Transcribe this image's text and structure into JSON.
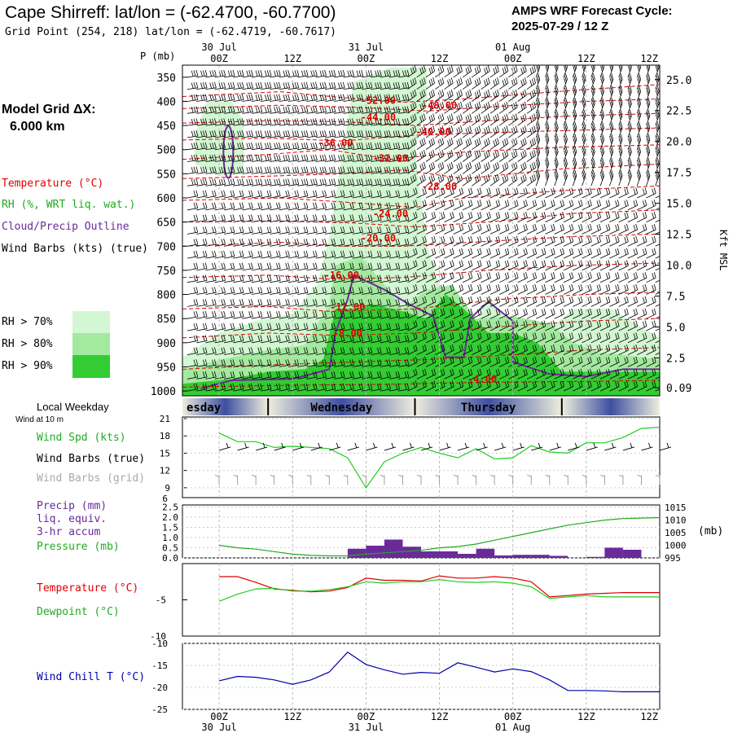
{
  "header": {
    "title": "Cape Shirreff:  lat/lon = (-62.4700, -60.7700)",
    "grid_point": "Grid Point (254, 218) lat/lon = (-62.4719, -60.7617)",
    "cycle_line1": "AMPS WRF Forecast Cycle:",
    "cycle_line2": "2025-07-29 / 12  Z"
  },
  "left_panel": {
    "model_grid_label": "Model Grid ΔX:",
    "model_grid_value": "6.000 km",
    "legend_temperature": "Temperature (°C)",
    "legend_rh": "RH (%, WRT liq. wat.)",
    "legend_cloud": "Cloud/Precip Outline",
    "legend_wind": "Wind Barbs (kts) (true)",
    "rh70": "RH > 70%",
    "rh80": "RH > 80%",
    "rh90": "RH > 90%",
    "local_weekday": "Local Weekday",
    "wind_at_10m": "Wind at 10 m"
  },
  "colors": {
    "rh70": "#d2f7d2",
    "rh80": "#a3ea9f",
    "rh90": "#33cc33",
    "temperature": "#dd0000",
    "cloud_outline": "#6a2a9a",
    "wind_speed": "#22cc22",
    "precip": "#6a2a9a",
    "pressure": "#22aa22",
    "dewpoint": "#22cc22",
    "wind_chill": "#0000aa",
    "weekday_dark": "#3e4fa0",
    "weekday_light": "#eeeedd"
  },
  "time_axis": {
    "tick_labels": [
      "00Z",
      "12Z",
      "00Z",
      "12Z",
      "00Z",
      "12Z"
    ],
    "date_labels": [
      "30 Jul",
      "31 Jul",
      "01 Aug"
    ],
    "forecast_hours": [
      0,
      3,
      6,
      9,
      12,
      15,
      18,
      21,
      24,
      27,
      30,
      33,
      36,
      39,
      42,
      45,
      48,
      51,
      54,
      57,
      60,
      63,
      66,
      69,
      72
    ]
  },
  "weekday_bar": {
    "days": [
      "esday",
      "Wednesday",
      "Thursday"
    ]
  },
  "chart_data": [
    {
      "type": "contour",
      "name": "vertical cross-section",
      "ylabel": "P (mb)",
      "y2label": "Kft MSL",
      "p_ticks": [
        "350",
        "400",
        "450",
        "500",
        "550",
        "600",
        "650",
        "700",
        "750",
        "800",
        "850",
        "900",
        "950",
        "1000"
      ],
      "p_tick_values": [
        350,
        400,
        450,
        500,
        550,
        600,
        650,
        700,
        750,
        800,
        850,
        900,
        950,
        1000
      ],
      "kft_ticks": [
        "25.0",
        "22.5",
        "20.0",
        "17.5",
        "15.0",
        "12.5",
        "10.0",
        "7.5",
        "5.0",
        "2.5",
        "0.09"
      ],
      "kft_tick_values": [
        25.0,
        22.5,
        20.0,
        17.5,
        15.0,
        12.5,
        10.0,
        7.5,
        5.0,
        2.5,
        0.09
      ],
      "temperature_contour_labels": [
        {
          "text": "-52.00",
          "hour": 26,
          "p": 405
        },
        {
          "text": "-48.00",
          "hour": 36,
          "p": 415
        },
        {
          "text": "-44.00",
          "hour": 26,
          "p": 440
        },
        {
          "text": "-40.00",
          "hour": 35,
          "p": 470
        },
        {
          "text": "-36.00",
          "hour": 19,
          "p": 493
        },
        {
          "text": "-32.00",
          "hour": 28,
          "p": 525
        },
        {
          "text": "-28.00",
          "hour": 36,
          "p": 583
        },
        {
          "text": "-24.00",
          "hour": 28,
          "p": 640
        },
        {
          "text": "-20.00",
          "hour": 26,
          "p": 690
        },
        {
          "text": "-16.00",
          "hour": 20,
          "p": 767
        },
        {
          "text": "-12.00",
          "hour": 21,
          "p": 833
        },
        {
          "text": "-8.00",
          "hour": 21,
          "p": 888
        },
        {
          "text": "-4.00",
          "hour": 43,
          "p": 982
        }
      ]
    },
    {
      "type": "line",
      "name": "wind at 10 m",
      "legend": [
        "Wind Spd (kts)",
        "Wind Barbs (true)",
        "Wind Barbs (grid)"
      ],
      "y_ticks": [
        "21",
        "18",
        "15",
        "12",
        "9"
      ],
      "ylim": [
        7,
        21
      ],
      "hours": [
        0,
        3,
        6,
        9,
        12,
        15,
        18,
        21,
        24,
        27,
        30,
        33,
        36,
        39,
        42,
        45,
        48,
        51,
        54,
        57,
        60,
        63,
        66,
        69,
        72
      ],
      "wind_speed_kts": [
        18.5,
        17.0,
        17.0,
        16.0,
        16.2,
        16.0,
        15.8,
        14.2,
        9.0,
        13.5,
        15.0,
        16.0,
        15.0,
        14.2,
        15.8,
        14.0,
        14.2,
        16.3,
        15.2,
        15.0,
        16.8,
        16.8,
        17.7,
        19.3,
        19.5
      ]
    },
    {
      "type": "bar",
      "name": "precip and pressure",
      "legend": [
        "Precip (mm)",
        "liq. equiv.",
        "3-hr accum",
        "Pressure (mb)"
      ],
      "precip_ticks": [
        "2.5",
        "2.0",
        "1.5",
        "1.0",
        "0.5",
        "0.0"
      ],
      "precip_ylim": [
        0,
        2.5
      ],
      "pressure_ticks": [
        "1015",
        "1010",
        "1005",
        "1000",
        "995"
      ],
      "pressure_ylim": [
        995,
        1015
      ],
      "pressure_unit": "(mb)",
      "top_value": "6",
      "bar_hours": [
        0,
        3,
        6,
        9,
        12,
        15,
        18,
        21,
        24,
        27,
        30,
        33,
        36,
        39,
        42,
        45,
        48,
        51,
        54,
        57,
        60,
        63,
        66,
        69
      ],
      "precip_mm": [
        0,
        0,
        0,
        0,
        0,
        0,
        0,
        0.45,
        0.6,
        0.9,
        0.55,
        0.32,
        0.32,
        0.2,
        0.45,
        0.12,
        0.15,
        0.15,
        0.1,
        0,
        0.05,
        0.5,
        0.4,
        0
      ],
      "hours": [
        0,
        3,
        6,
        9,
        12,
        15,
        18,
        21,
        24,
        27,
        30,
        33,
        36,
        39,
        42,
        45,
        48,
        51,
        54,
        57,
        60,
        63,
        66,
        69,
        72
      ],
      "pressure_mb": [
        1000.0,
        999.0,
        998.5,
        997.5,
        996.5,
        996.0,
        995.8,
        995.8,
        996.5,
        997.0,
        997.5,
        998.0,
        999.0,
        999.5,
        1000.5,
        1002.0,
        1003.5,
        1005.0,
        1006.5,
        1008.0,
        1009.0,
        1010.0,
        1010.6,
        1010.8,
        1011.0
      ]
    },
    {
      "type": "line",
      "name": "temperature and dewpoint",
      "legend": [
        "Temperature (°C)",
        "Dewpoint (°C)"
      ],
      "y_ticks": [
        "-5",
        "-10"
      ],
      "ylim": [
        -10,
        0
      ],
      "hours": [
        0,
        3,
        6,
        9,
        12,
        15,
        18,
        21,
        24,
        27,
        30,
        33,
        36,
        39,
        42,
        45,
        48,
        51,
        54,
        57,
        60,
        63,
        66,
        69,
        72
      ],
      "temperature_c": [
        -1.8,
        -1.8,
        -2.6,
        -3.5,
        -3.7,
        -3.9,
        -3.8,
        -3.3,
        -2.0,
        -2.3,
        -2.3,
        -2.4,
        -1.7,
        -2.0,
        -2.0,
        -1.8,
        -2.0,
        -2.5,
        -4.6,
        -4.4,
        -4.2,
        -4.1,
        -4.0,
        -4.0,
        -4.0
      ],
      "dewpoint_c": [
        -5.2,
        -4.2,
        -3.5,
        -3.4,
        -3.8,
        -3.8,
        -3.6,
        -3.2,
        -2.5,
        -2.7,
        -2.5,
        -2.5,
        -2.2,
        -2.5,
        -2.6,
        -2.5,
        -2.7,
        -3.2,
        -4.8,
        -4.6,
        -4.4,
        -4.6,
        -4.6,
        -4.6,
        -4.6
      ]
    },
    {
      "type": "line",
      "name": "wind chill",
      "legend": [
        "Wind Chill T (°C)"
      ],
      "y_ticks": [
        "-10",
        "-15",
        "-20",
        "-25"
      ],
      "ylim": [
        -25,
        -10
      ],
      "hours": [
        0,
        3,
        6,
        9,
        12,
        15,
        18,
        21,
        24,
        27,
        30,
        33,
        36,
        39,
        42,
        45,
        48,
        51,
        54,
        57,
        60,
        63,
        66,
        69,
        72
      ],
      "wind_chill_c": [
        -18.5,
        -17.5,
        -17.7,
        -18.3,
        -19.3,
        -18.3,
        -16.5,
        -12.0,
        -14.8,
        -16.0,
        -17.0,
        -16.6,
        -16.8,
        -14.4,
        -15.4,
        -16.5,
        -15.8,
        -16.4,
        -18.3,
        -20.7,
        -20.7,
        -20.8,
        -21.0,
        -21.0,
        -21.0
      ]
    }
  ]
}
